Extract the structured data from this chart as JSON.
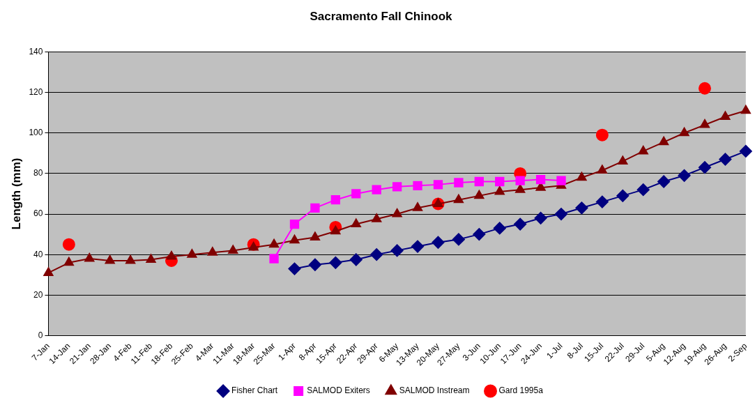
{
  "chart_data": {
    "type": "line",
    "title": "Sacramento Fall Chinook",
    "ylabel": "Length (mm)",
    "categories": [
      "7-Jan",
      "14-Jan",
      "21-Jan",
      "28-Jan",
      "4-Feb",
      "11-Feb",
      "18-Feb",
      "25-Feb",
      "4-Mar",
      "11-Mar",
      "18-Mar",
      "25-Mar",
      "1-Apr",
      "8-Apr",
      "15-Apr",
      "22-Apr",
      "29-Apr",
      "6-May",
      "13-May",
      "20-May",
      "27-May",
      "3-Jun",
      "10-Jun",
      "17-Jun",
      "24-Jun",
      "1-Jul",
      "8-Jul",
      "15-Jul",
      "22-Jul",
      "29-Jul",
      "5-Aug",
      "12-Aug",
      "19-Aug",
      "26-Aug",
      "2-Sep"
    ],
    "series": [
      {
        "name": "Fisher Chart",
        "color": "#000080",
        "marker": "diamond",
        "values": [
          null,
          null,
          null,
          null,
          null,
          null,
          null,
          null,
          null,
          null,
          null,
          null,
          33,
          35,
          36,
          37.5,
          40,
          42,
          44,
          46,
          47.5,
          50,
          53,
          55,
          58,
          60,
          63,
          66,
          69,
          72,
          76,
          79,
          83,
          87,
          91
        ]
      },
      {
        "name": "SALMOD Exiters",
        "color": "#ff00ff",
        "marker": "square",
        "values": [
          null,
          null,
          null,
          null,
          null,
          null,
          null,
          null,
          null,
          null,
          null,
          38,
          55,
          63,
          67,
          70,
          72,
          73.5,
          74,
          74.5,
          75.5,
          76,
          76,
          76.5,
          77,
          76.5,
          null,
          null,
          null,
          null,
          null,
          null,
          null,
          null,
          null
        ]
      },
      {
        "name": "SALMOD Instream",
        "color": "#800000",
        "marker": "triangle",
        "values": [
          31,
          36,
          38,
          37,
          37,
          37.5,
          39,
          40,
          41,
          42,
          43.5,
          45,
          47,
          48.5,
          51.5,
          55,
          57.5,
          60,
          63,
          65,
          67,
          69,
          71,
          72,
          73,
          74,
          78,
          81.5,
          86,
          91,
          95.5,
          100,
          104,
          108,
          111
        ]
      },
      {
        "name": "Gard 1995a",
        "type": "scatter",
        "color": "#ff0000",
        "marker": "circle",
        "x": [
          "14-Jan",
          "18-Feb",
          "18-Mar",
          "15-Apr",
          "20-May",
          "17-Jun",
          "15-Jul",
          "19-Aug"
        ],
        "values": [
          45,
          37,
          45,
          53.5,
          65,
          80,
          99,
          122
        ]
      }
    ],
    "ylim": [
      0,
      140
    ],
    "yticks": [
      0,
      20,
      40,
      60,
      80,
      100,
      120,
      140
    ],
    "grid": "y",
    "legend": "bottom"
  }
}
